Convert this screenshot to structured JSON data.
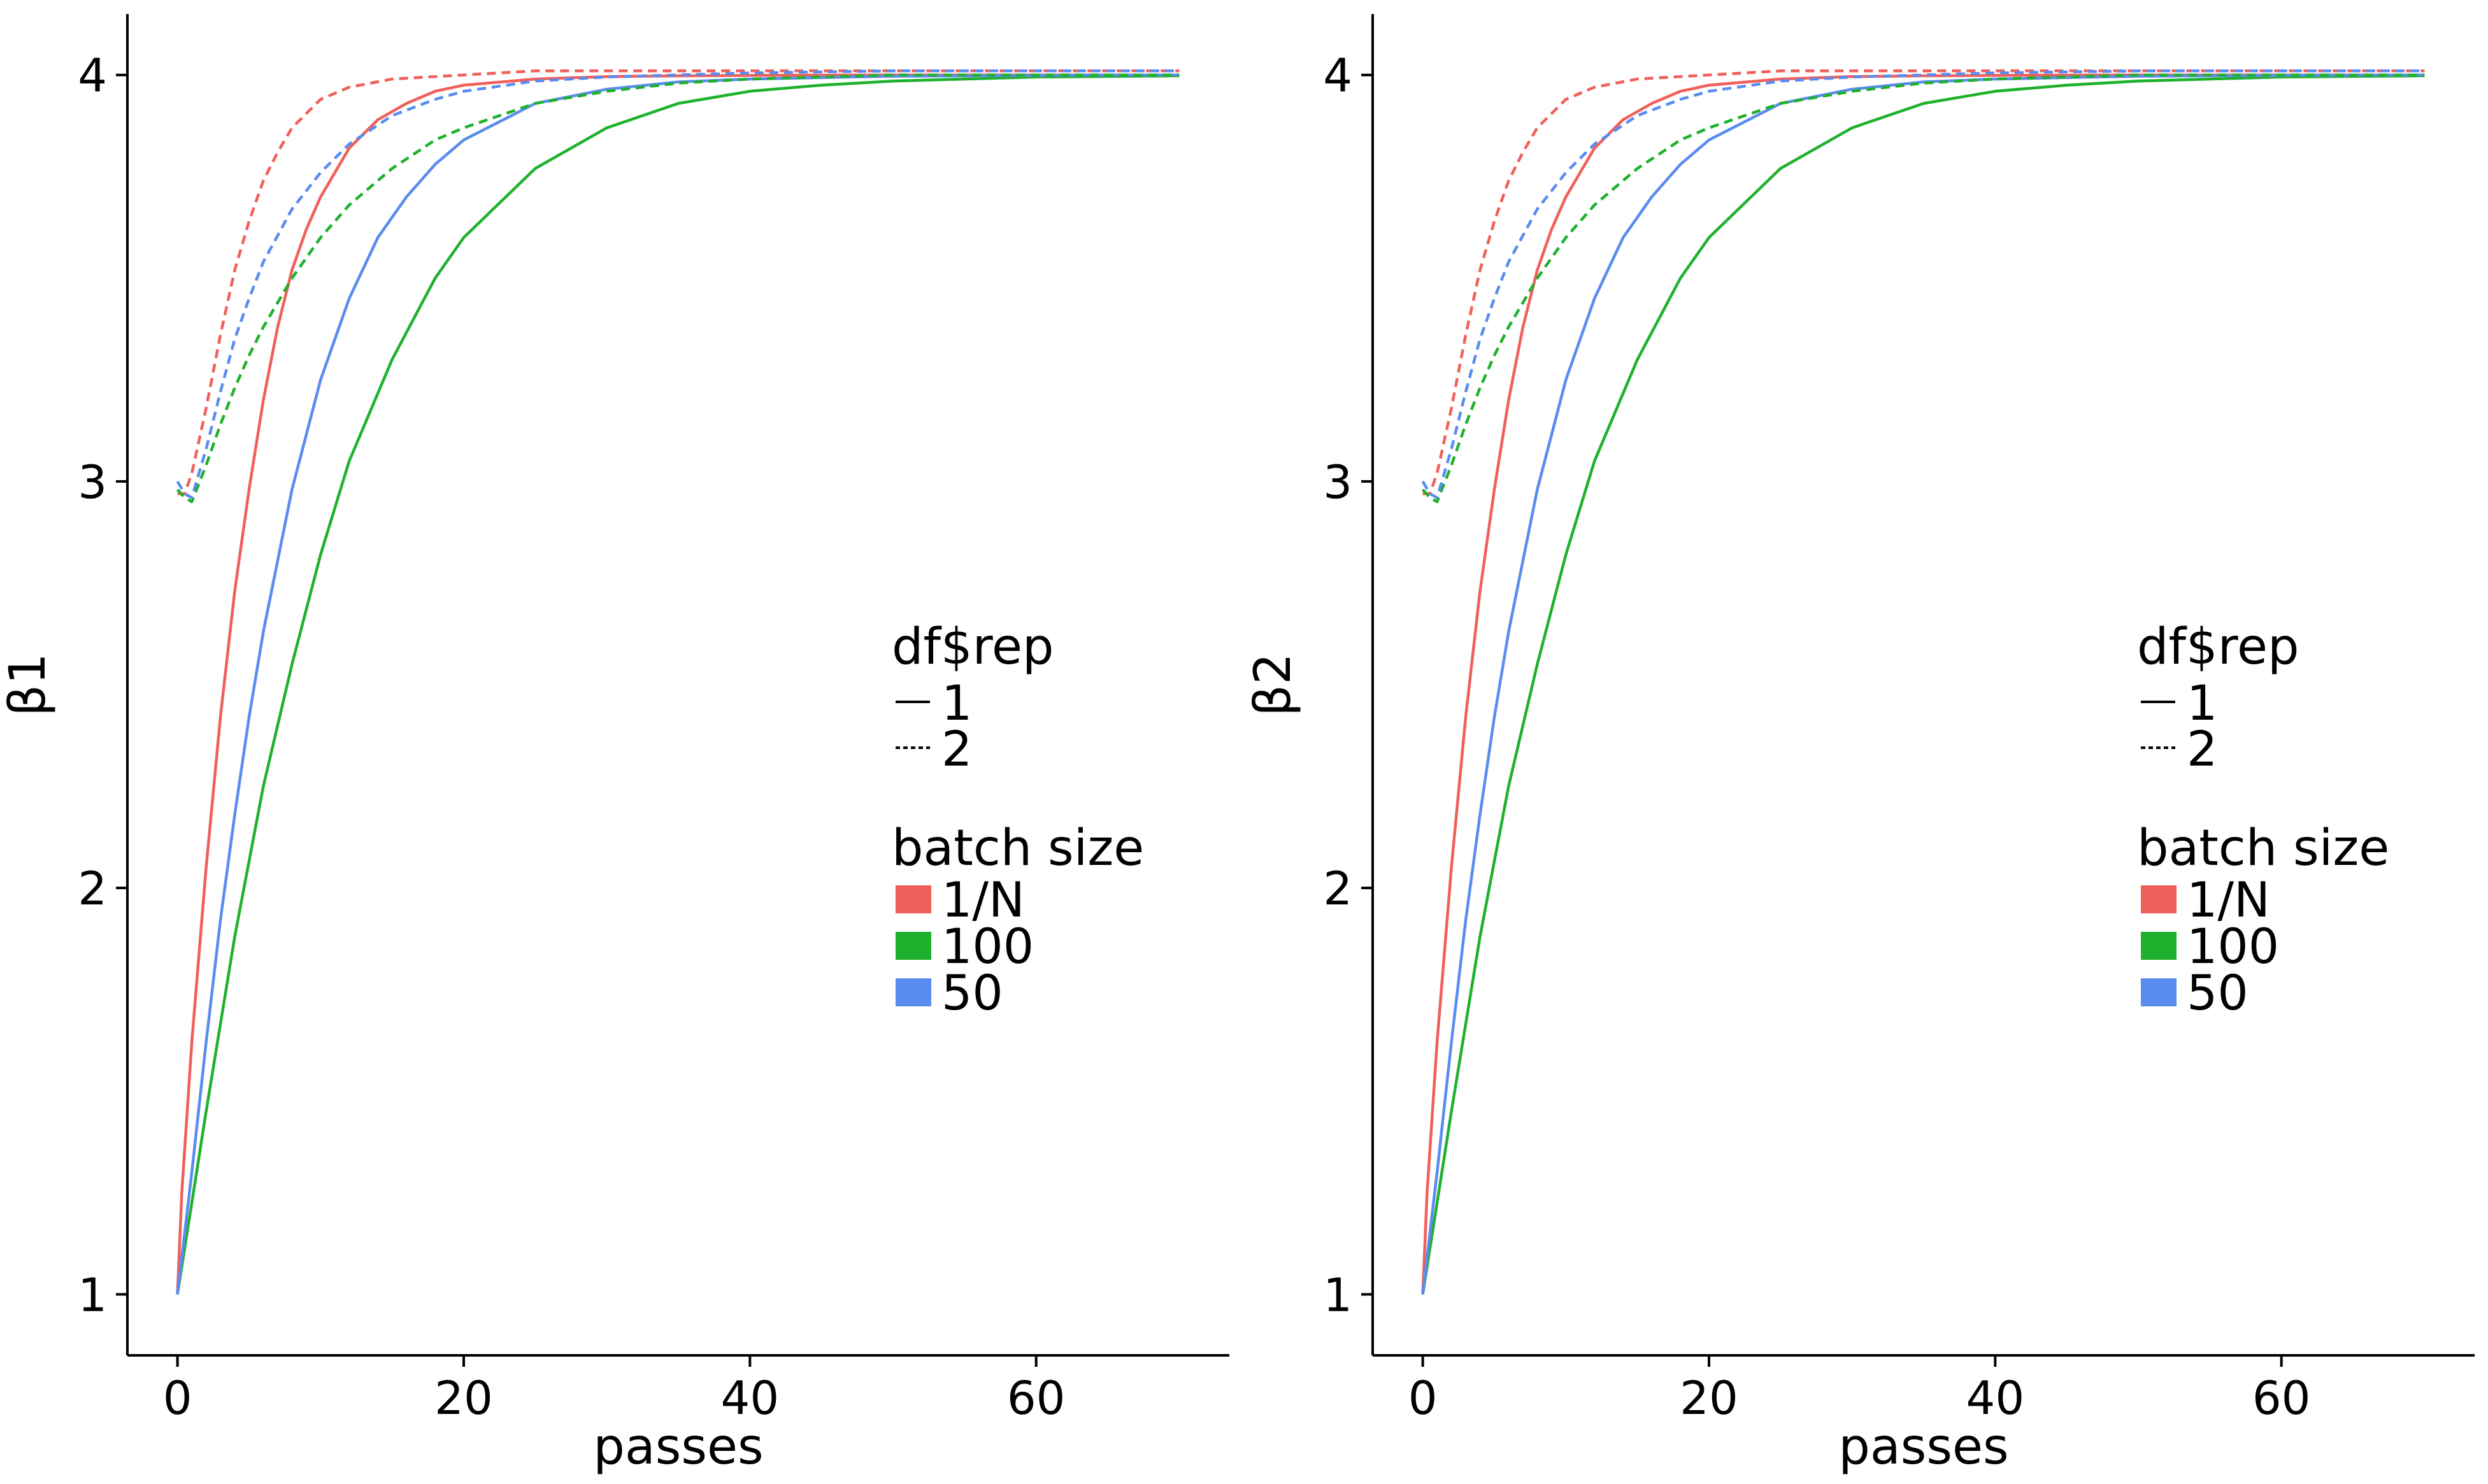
{
  "chart_data": [
    {
      "type": "line",
      "panel": "left",
      "xlabel": "passes",
      "ylabel": "β1",
      "xlim": [
        -3.5,
        73.5
      ],
      "ylim": [
        0.85,
        4.15
      ],
      "xticks": [
        0,
        20,
        40,
        60
      ],
      "yticks": [
        1,
        2,
        3,
        4
      ],
      "grid": false,
      "legend_placement": "right-center",
      "legend": {
        "linetype": {
          "title": "df$rep",
          "entries": [
            {
              "label": "1",
              "dash": "solid"
            },
            {
              "label": "2",
              "dash": "dotted"
            }
          ]
        },
        "color": {
          "title": "batch size",
          "entries": [
            {
              "label": "1/N",
              "color": "#F0605A"
            },
            {
              "label": "100",
              "color": "#1FB12D"
            },
            {
              "label": "50",
              "color": "#5A8CF0"
            }
          ]
        }
      },
      "series": [
        {
          "batch": "1/N",
          "rep": "1",
          "color": "#F0605A",
          "x": [
            0,
            0.3,
            1,
            2,
            3,
            4,
            5,
            6,
            7,
            8,
            9,
            10,
            12,
            14,
            16,
            18,
            20,
            25,
            30,
            35,
            40,
            50,
            60,
            70
          ],
          "y": [
            1.0,
            1.25,
            1.62,
            2.05,
            2.42,
            2.73,
            2.98,
            3.2,
            3.38,
            3.52,
            3.62,
            3.7,
            3.82,
            3.89,
            3.93,
            3.96,
            3.975,
            3.99,
            3.996,
            3.998,
            3.999,
            4.0,
            4.0,
            4.0
          ]
        },
        {
          "batch": "100",
          "rep": "1",
          "color": "#1FB12D",
          "x": [
            0,
            2,
            4,
            6,
            8,
            10,
            12,
            15,
            18,
            20,
            25,
            30,
            35,
            40,
            45,
            50,
            60,
            70
          ],
          "y": [
            1.0,
            1.45,
            1.88,
            2.25,
            2.55,
            2.82,
            3.05,
            3.3,
            3.5,
            3.6,
            3.77,
            3.87,
            3.93,
            3.96,
            3.975,
            3.985,
            3.995,
            3.998
          ]
        },
        {
          "batch": "50",
          "rep": "1",
          "color": "#5A8CF0",
          "x": [
            0,
            1,
            2,
            3,
            4,
            5,
            6,
            8,
            10,
            12,
            14,
            16,
            18,
            20,
            25,
            30,
            35,
            40,
            50,
            60,
            70
          ],
          "y": [
            1.0,
            1.3,
            1.62,
            1.92,
            2.18,
            2.42,
            2.63,
            2.98,
            3.25,
            3.45,
            3.6,
            3.7,
            3.78,
            3.84,
            3.93,
            3.965,
            3.983,
            3.99,
            3.997,
            3.999,
            4.0
          ]
        },
        {
          "batch": "1/N",
          "rep": "2",
          "color": "#F0605A",
          "x": [
            0,
            0.5,
            1,
            2,
            3,
            4,
            5,
            6,
            7,
            8,
            10,
            12,
            15,
            20,
            25,
            30,
            40,
            50,
            60,
            70
          ],
          "y": [
            2.97,
            2.97,
            3.02,
            3.18,
            3.36,
            3.52,
            3.64,
            3.74,
            3.81,
            3.87,
            3.94,
            3.97,
            3.99,
            4.0,
            4.01,
            4.01,
            4.01,
            4.01,
            4.01,
            4.01
          ]
        },
        {
          "batch": "100",
          "rep": "2",
          "color": "#1FB12D",
          "x": [
            0,
            0.5,
            1,
            2,
            3,
            4,
            5,
            6,
            8,
            10,
            12,
            15,
            18,
            20,
            25,
            30,
            35,
            40,
            50,
            60,
            70
          ],
          "y": [
            2.98,
            2.96,
            2.95,
            3.04,
            3.14,
            3.23,
            3.31,
            3.38,
            3.5,
            3.6,
            3.68,
            3.77,
            3.84,
            3.87,
            3.93,
            3.96,
            3.98,
            3.99,
            4.0,
            4.0,
            4.0
          ]
        },
        {
          "batch": "50",
          "rep": "2",
          "color": "#5A8CF0",
          "x": [
            0,
            0.5,
            1,
            2,
            3,
            4,
            5,
            6,
            8,
            10,
            12,
            15,
            18,
            20,
            25,
            30,
            40,
            50,
            60,
            70
          ],
          "y": [
            3.0,
            2.97,
            2.96,
            3.08,
            3.22,
            3.35,
            3.45,
            3.54,
            3.67,
            3.76,
            3.83,
            3.9,
            3.94,
            3.96,
            3.985,
            3.995,
            4.005,
            4.01,
            4.01,
            4.01
          ]
        }
      ]
    },
    {
      "type": "line",
      "panel": "right",
      "xlabel": "passes",
      "ylabel": "β2",
      "xlim": [
        -3.5,
        73.5
      ],
      "ylim": [
        0.85,
        4.15
      ],
      "xticks": [
        0,
        20,
        40,
        60
      ],
      "yticks": [
        1,
        2,
        3,
        4
      ],
      "grid": false,
      "legend_placement": "right-center",
      "legend": {
        "linetype": {
          "title": "df$rep",
          "entries": [
            {
              "label": "1",
              "dash": "solid"
            },
            {
              "label": "2",
              "dash": "dotted"
            }
          ]
        },
        "color": {
          "title": "batch size",
          "entries": [
            {
              "label": "1/N",
              "color": "#F0605A"
            },
            {
              "label": "100",
              "color": "#1FB12D"
            },
            {
              "label": "50",
              "color": "#5A8CF0"
            }
          ]
        }
      },
      "series": [
        {
          "batch": "1/N",
          "rep": "1",
          "color": "#F0605A",
          "x": [
            0,
            0.3,
            1,
            2,
            3,
            4,
            5,
            6,
            7,
            8,
            9,
            10,
            12,
            14,
            16,
            18,
            20,
            25,
            30,
            35,
            40,
            50,
            60,
            70
          ],
          "y": [
            1.0,
            1.25,
            1.62,
            2.05,
            2.42,
            2.73,
            2.98,
            3.2,
            3.38,
            3.52,
            3.62,
            3.7,
            3.82,
            3.89,
            3.93,
            3.96,
            3.975,
            3.99,
            3.996,
            3.998,
            3.999,
            4.0,
            4.0,
            4.0
          ]
        },
        {
          "batch": "100",
          "rep": "1",
          "color": "#1FB12D",
          "x": [
            0,
            2,
            4,
            6,
            8,
            10,
            12,
            15,
            18,
            20,
            25,
            30,
            35,
            40,
            45,
            50,
            60,
            70
          ],
          "y": [
            1.0,
            1.45,
            1.88,
            2.25,
            2.55,
            2.82,
            3.05,
            3.3,
            3.5,
            3.6,
            3.77,
            3.87,
            3.93,
            3.96,
            3.975,
            3.985,
            3.995,
            3.998
          ]
        },
        {
          "batch": "50",
          "rep": "1",
          "color": "#5A8CF0",
          "x": [
            0,
            1,
            2,
            3,
            4,
            5,
            6,
            8,
            10,
            12,
            14,
            16,
            18,
            20,
            25,
            30,
            35,
            40,
            50,
            60,
            70
          ],
          "y": [
            1.0,
            1.3,
            1.62,
            1.92,
            2.18,
            2.42,
            2.63,
            2.98,
            3.25,
            3.45,
            3.6,
            3.7,
            3.78,
            3.84,
            3.93,
            3.965,
            3.983,
            3.99,
            3.997,
            3.999,
            4.0
          ]
        },
        {
          "batch": "1/N",
          "rep": "2",
          "color": "#F0605A",
          "x": [
            0,
            0.5,
            1,
            2,
            3,
            4,
            5,
            6,
            7,
            8,
            10,
            12,
            15,
            20,
            25,
            30,
            40,
            50,
            60,
            70
          ],
          "y": [
            2.97,
            2.97,
            3.02,
            3.18,
            3.36,
            3.52,
            3.64,
            3.74,
            3.81,
            3.87,
            3.94,
            3.97,
            3.99,
            4.0,
            4.01,
            4.01,
            4.01,
            4.01,
            4.01,
            4.01
          ]
        },
        {
          "batch": "100",
          "rep": "2",
          "color": "#1FB12D",
          "x": [
            0,
            0.5,
            1,
            2,
            3,
            4,
            5,
            6,
            8,
            10,
            12,
            15,
            18,
            20,
            25,
            30,
            35,
            40,
            50,
            60,
            70
          ],
          "y": [
            2.98,
            2.96,
            2.95,
            3.04,
            3.14,
            3.23,
            3.31,
            3.38,
            3.5,
            3.6,
            3.68,
            3.77,
            3.84,
            3.87,
            3.93,
            3.96,
            3.98,
            3.99,
            4.0,
            4.0,
            4.0
          ]
        },
        {
          "batch": "50",
          "rep": "2",
          "color": "#5A8CF0",
          "x": [
            0,
            0.5,
            1,
            2,
            3,
            4,
            5,
            6,
            8,
            10,
            12,
            15,
            18,
            20,
            25,
            30,
            40,
            50,
            60,
            70
          ],
          "y": [
            3.0,
            2.97,
            2.96,
            3.08,
            3.22,
            3.35,
            3.45,
            3.54,
            3.67,
            3.76,
            3.83,
            3.9,
            3.94,
            3.96,
            3.985,
            3.995,
            4.005,
            4.01,
            4.01,
            4.01
          ]
        }
      ]
    }
  ]
}
